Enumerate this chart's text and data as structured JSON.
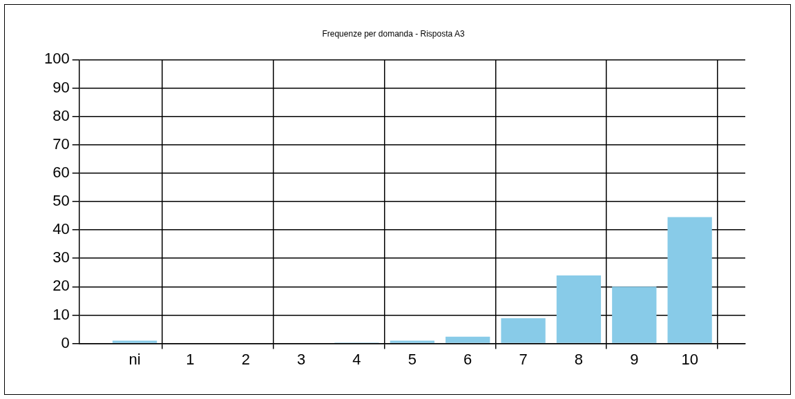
{
  "chart_data": {
    "type": "bar",
    "title": "Frequenze per domanda - Risposta A3",
    "categories": [
      "ni",
      "1",
      "2",
      "3",
      "4",
      "5",
      "6",
      "7",
      "8",
      "9",
      "10"
    ],
    "values": [
      1,
      0,
      0,
      0,
      0.3,
      1,
      2.4,
      8.9,
      24,
      20,
      44.5
    ],
    "color": "#88cbe8",
    "ylim": [
      0,
      100
    ],
    "yticks": [
      0,
      10,
      20,
      30,
      40,
      50,
      60,
      70,
      80,
      90,
      100
    ],
    "grid": true
  }
}
